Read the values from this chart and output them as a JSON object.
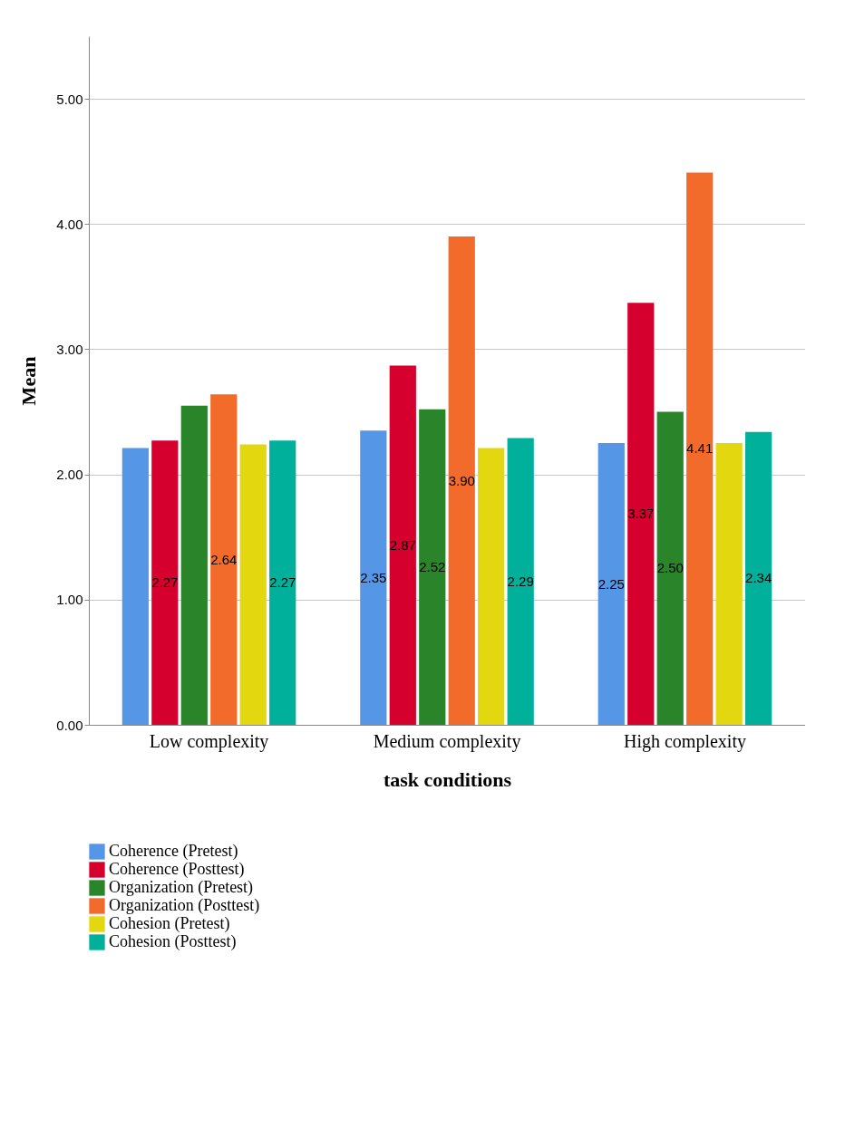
{
  "chart_data": {
    "type": "bar",
    "xlabel": "task conditions",
    "ylabel": "Mean",
    "categories": [
      "Low complexity",
      "Medium complexity",
      "High complexity"
    ],
    "ylim": [
      0,
      5.5
    ],
    "yticks": [
      {
        "value": 0,
        "label": "0.00"
      },
      {
        "value": 1,
        "label": "1.00"
      },
      {
        "value": 2,
        "label": "2.00"
      },
      {
        "value": 3,
        "label": "3.00"
      },
      {
        "value": 4,
        "label": "4.00"
      },
      {
        "value": 5,
        "label": "5.00"
      }
    ],
    "grid": "y",
    "legend": "bottom",
    "series": [
      {
        "name": "Coherence (Pretest)",
        "color": "#5596e6",
        "values": [
          2.21,
          2.35,
          2.25
        ],
        "value_labels": [
          null,
          "2.35",
          "2.25"
        ]
      },
      {
        "name": "Coherence (Posttest)",
        "color": "#d6002f",
        "values": [
          2.27,
          2.87,
          3.37
        ],
        "value_labels": [
          "2.27",
          "2.87",
          "3.37"
        ]
      },
      {
        "name": "Organization (Pretest)",
        "color": "#2a852a",
        "values": [
          2.55,
          2.52,
          2.5
        ],
        "value_labels": [
          null,
          "2.52",
          "2.50"
        ]
      },
      {
        "name": "Organization (Posttest)",
        "color": "#f26b2b",
        "values": [
          2.64,
          3.9,
          4.41
        ],
        "value_labels": [
          "2.64",
          "3.90",
          "4.41"
        ]
      },
      {
        "name": "Cohesion (Pretest)",
        "color": "#e3d70f",
        "values": [
          2.24,
          2.21,
          2.25
        ],
        "value_labels": [
          null,
          null,
          null
        ]
      },
      {
        "name": "Cohesion (Posttest)",
        "color": "#00b09b",
        "values": [
          2.27,
          2.29,
          2.34
        ],
        "value_labels": [
          "2.27",
          "2.29",
          "2.34"
        ]
      }
    ]
  }
}
